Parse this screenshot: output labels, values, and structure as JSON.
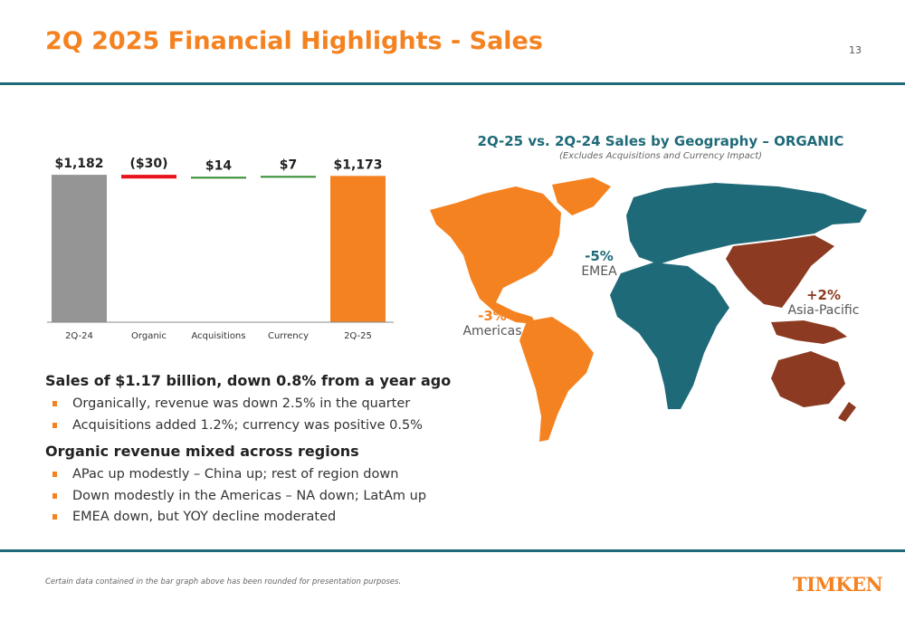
{
  "slide": {
    "title": "2Q 2025 Financial Highlights - Sales",
    "page_number": "13"
  },
  "chart_data": {
    "type": "bar",
    "subtype": "waterfall",
    "categories": [
      "2Q-24",
      "Organic",
      "Acquisitions",
      "Currency",
      "2Q-25"
    ],
    "values": [
      1182,
      -30,
      14,
      7,
      1173
    ],
    "value_labels": [
      "$1,182",
      "($30)",
      "$14",
      "$7",
      "$1,173"
    ],
    "bar_kinds": [
      "total",
      "delta",
      "delta",
      "delta",
      "total"
    ],
    "colors": {
      "total_start": "#959595",
      "decrease": "#e8141c",
      "increase": "#2f8a2f",
      "total_end": "#f58220"
    },
    "title": "",
    "xlabel": "",
    "ylabel": "",
    "ylim": [
      0,
      1190
    ]
  },
  "map": {
    "title": "2Q-25 vs. 2Q-24 Sales by Geography – ORGANIC",
    "subtitle": "(Excludes Acquisitions and Currency Impact)",
    "regions": [
      {
        "name": "Americas",
        "pct": "-3%",
        "value": -3,
        "color": "#f58220"
      },
      {
        "name": "EMEA",
        "pct": "-5%",
        "value": -5,
        "color": "#1f6a78"
      },
      {
        "name": "Asia-Pacific",
        "pct": "+2%",
        "value": 2,
        "color": "#8c3b22"
      }
    ]
  },
  "sections": [
    {
      "heading": "Sales of $1.17 billion, down 0.8% from a year ago",
      "bullets": [
        "Organically, revenue was down 2.5% in the quarter",
        "Acquisitions added 1.2%; currency was positive 0.5%"
      ]
    },
    {
      "heading": "Organic revenue mixed across regions",
      "bullets": [
        "APac up modestly – China up; rest of region down",
        "Down modestly in the Americas – NA down; LatAm up",
        "EMEA down, but YOY decline moderated"
      ]
    }
  ],
  "footnote": "Certain data contained in the bar graph above has been rounded for presentation purposes.",
  "logo": "TIMKEN"
}
